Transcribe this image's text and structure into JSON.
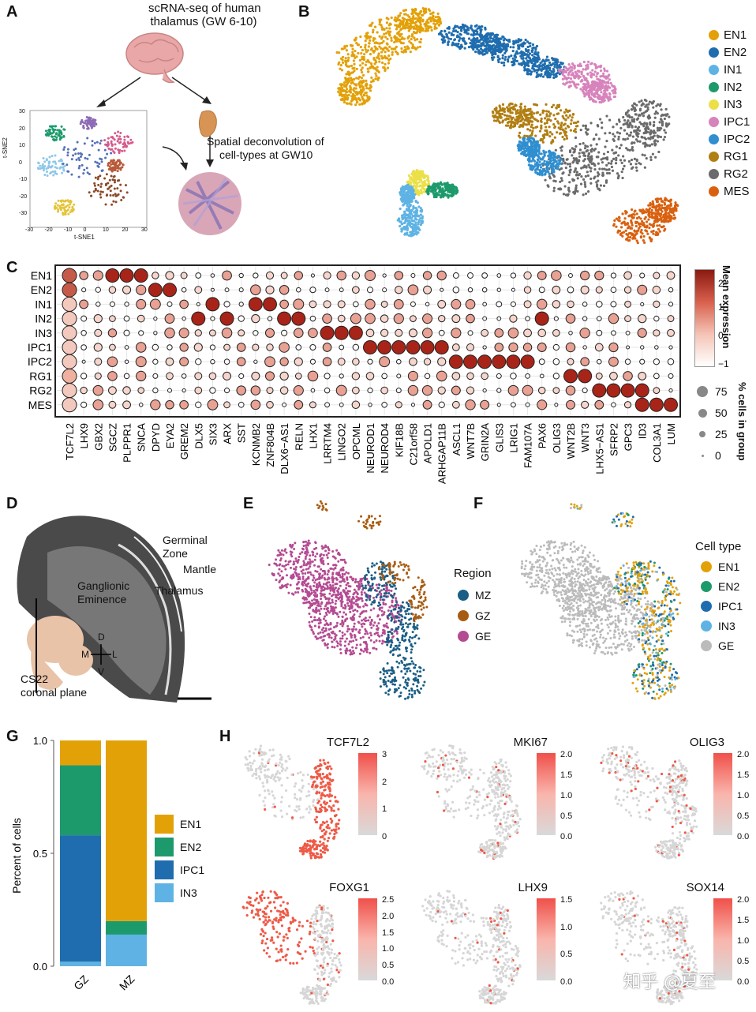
{
  "panels": {
    "A": "A",
    "B": "B",
    "C": "C",
    "D": "D",
    "E": "E",
    "F": "F",
    "G": "G",
    "H": "H"
  },
  "panelA": {
    "title_line1": "scRNA-seq of human",
    "title_line2": "thalamus (GW 6-10)",
    "spatial_line1": "Spatial deconvolution of",
    "spatial_line2": "cell-types at GW10",
    "tsne_xlabel": "t-SNE1",
    "tsne_ylabel": "t-SNE2",
    "tsne_xticks": [
      "-30",
      "-20",
      "-10",
      "0",
      "10",
      "20",
      "30"
    ],
    "tsne_yticks": [
      "30",
      "20",
      "10",
      "0",
      "-10",
      "-20",
      "-30"
    ]
  },
  "panelB": {
    "legend": [
      {
        "label": "EN1",
        "color": "#E3A108"
      },
      {
        "label": "EN2",
        "color": "#1F6DAE"
      },
      {
        "label": "IN1",
        "color": "#5FB3E4"
      },
      {
        "label": "IN2",
        "color": "#1D9A6C"
      },
      {
        "label": "IN3",
        "color": "#EBE047"
      },
      {
        "label": "IPC1",
        "color": "#D783BC"
      },
      {
        "label": "IPC2",
        "color": "#2F8FD0"
      },
      {
        "label": "RG1",
        "color": "#B17E12"
      },
      {
        "label": "RG2",
        "color": "#6B6B6B"
      },
      {
        "label": "MES",
        "color": "#D9600F"
      }
    ]
  },
  "panelC": {
    "rows": [
      "EN1",
      "EN2",
      "IN1",
      "IN2",
      "IN3",
      "IPC1",
      "IPC2",
      "RG1",
      "RG2",
      "MES"
    ],
    "genes": [
      "TCF7L2",
      "LHX9",
      "GBX2",
      "SGCZ",
      "PLPPR1",
      "SNCA",
      "DPYD",
      "EYA2",
      "GREM2",
      "DLX5",
      "SIX3",
      "ARX",
      "SST",
      "KCNMB2",
      "ZNF804B",
      "DLX6−AS1",
      "RELN",
      "LHX1",
      "LRRTM4",
      "LINGO2",
      "OPCML",
      "NEUROD1",
      "NEUROD4",
      "KIF18B",
      "C21orf58",
      "APOLD1",
      "ARHGAP11B",
      "ASCL1",
      "WNT7B",
      "GRIN2A",
      "GLIS3",
      "LRIG1",
      "FAM107A",
      "PAX6",
      "OLIG3",
      "WNT2B",
      "WNT3",
      "LHX5−AS1",
      "SFRP2",
      "GPC3",
      "ID3",
      "COL3A1",
      "LUM"
    ],
    "expr_title": "Mean expression",
    "expr_ticks": [
      "2",
      "1",
      "0",
      "−1"
    ],
    "pct_title": "% cells in group",
    "pct_ticks": [
      "75",
      "50",
      "25",
      "0"
    ],
    "highlights": [
      [
        0,
        0
      ],
      [
        0,
        3
      ],
      [
        0,
        4
      ],
      [
        0,
        5
      ],
      [
        1,
        6
      ],
      [
        1,
        7
      ],
      [
        2,
        10
      ],
      [
        2,
        13
      ],
      [
        2,
        14
      ],
      [
        3,
        9
      ],
      [
        3,
        11
      ],
      [
        3,
        15
      ],
      [
        3,
        16
      ],
      [
        3,
        33
      ],
      [
        4,
        18
      ],
      [
        4,
        19
      ],
      [
        4,
        20
      ],
      [
        5,
        21
      ],
      [
        5,
        22
      ],
      [
        5,
        23
      ],
      [
        5,
        24
      ],
      [
        5,
        25
      ],
      [
        5,
        26
      ],
      [
        6,
        27
      ],
      [
        6,
        28
      ],
      [
        6,
        29
      ],
      [
        6,
        30
      ],
      [
        6,
        31
      ],
      [
        6,
        32
      ],
      [
        7,
        35
      ],
      [
        7,
        36
      ],
      [
        8,
        37
      ],
      [
        8,
        38
      ],
      [
        8,
        39
      ],
      [
        8,
        40
      ],
      [
        9,
        40
      ],
      [
        9,
        41
      ],
      [
        9,
        42
      ]
    ]
  },
  "panelD": {
    "germinal": "Germinal",
    "zone": "Zone",
    "mantle": "Mantle",
    "thalamus": "Thalamus",
    "ganglionic": "Ganglionic",
    "eminence": "Eminence",
    "axis_d": "D",
    "axis_m": "M",
    "axis_l": "L",
    "axis_v": "V",
    "cs22": "CS22",
    "coronal": "coronal plane"
  },
  "panelE": {
    "legend_title": "Region",
    "legend": [
      {
        "label": "MZ",
        "color": "#1B5E85"
      },
      {
        "label": "GZ",
        "color": "#A85C12"
      },
      {
        "label": "GE",
        "color": "#B44A92"
      }
    ]
  },
  "panelF": {
    "legend_title": "Cell type",
    "legend": [
      {
        "label": "EN1",
        "color": "#E3A108"
      },
      {
        "label": "EN2",
        "color": "#1D9A6C"
      },
      {
        "label": "IPC1",
        "color": "#1F6DAE"
      },
      {
        "label": "IN3",
        "color": "#5FB3E4"
      },
      {
        "label": "GE",
        "color": "#BBBBBB"
      }
    ]
  },
  "chart_data": {
    "type": "bar",
    "stacked": true,
    "categories": [
      "GZ",
      "MZ"
    ],
    "ylabel": "Percent of cells",
    "yticks": [
      "1.0",
      "0.5",
      "0.0"
    ],
    "ylim": [
      0,
      1.0
    ],
    "series": [
      {
        "name": "IN3",
        "color": "#5FB3E4",
        "values": [
          0.02,
          0.14
        ]
      },
      {
        "name": "IPC1",
        "color": "#1F6DAE",
        "values": [
          0.56,
          0.0
        ]
      },
      {
        "name": "EN2",
        "color": "#1D9A6C",
        "values": [
          0.31,
          0.06
        ]
      },
      {
        "name": "EN1",
        "color": "#E3A108",
        "values": [
          0.11,
          0.8
        ]
      }
    ],
    "legend_order": [
      "EN1",
      "EN2",
      "IPC1",
      "IN3"
    ]
  },
  "panelH": {
    "genes": [
      {
        "name": "TCF7L2",
        "ticks": [
          "3",
          "2",
          "1",
          "0"
        ]
      },
      {
        "name": "MKI67",
        "ticks": [
          "2.0",
          "1.5",
          "1.0",
          "0.5",
          "0.0"
        ]
      },
      {
        "name": "OLIG3",
        "ticks": [
          "2.0",
          "1.5",
          "1.0",
          "0.5",
          "0.0"
        ]
      },
      {
        "name": "FOXG1",
        "ticks": [
          "2.5",
          "2.0",
          "1.5",
          "1.0",
          "0.5",
          "0.0"
        ]
      },
      {
        "name": "LHX9",
        "ticks": [
          "1.5",
          "1.0",
          "0.5",
          "0.0"
        ]
      },
      {
        "name": "SOX14",
        "ticks": [
          "2.0",
          "1.5",
          "1.0",
          "0.5",
          "0.0"
        ]
      }
    ]
  },
  "watermark": "知乎 @夏至"
}
